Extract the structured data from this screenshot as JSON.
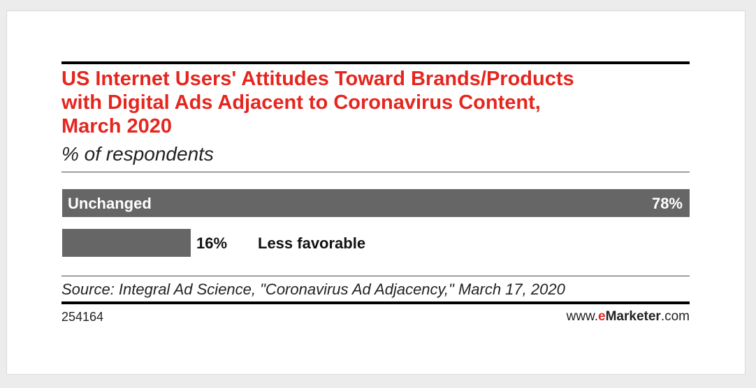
{
  "header": {
    "title": "US Internet Users' Attitudes Toward Brands/Products\nwith Digital Ads Adjacent to Coronavirus Content,\nMarch 2020",
    "subtitle": "% of respondents"
  },
  "footer": {
    "source": "Source: Integral Ad Science, \"Coronavirus Ad Adjacency,\" March 17, 2020",
    "chart_id": "254164",
    "brand_prefix": "www.",
    "brand_e": "e",
    "brand_name": "Marketer",
    "brand_suffix": ".com"
  },
  "colors": {
    "title": "#e5261f",
    "bar": "#666666"
  },
  "chart_data": {
    "type": "bar",
    "orientation": "horizontal",
    "title": "US Internet Users' Attitudes Toward Brands/Products with Digital Ads Adjacent to Coronavirus Content, March 2020",
    "subtitle": "% of respondents",
    "categories": [
      "Unchanged",
      "Less favorable"
    ],
    "values": [
      78,
      16
    ],
    "value_labels": [
      "78%",
      "16%"
    ],
    "xlim": [
      0,
      78
    ],
    "grid": false,
    "legend": "none"
  }
}
